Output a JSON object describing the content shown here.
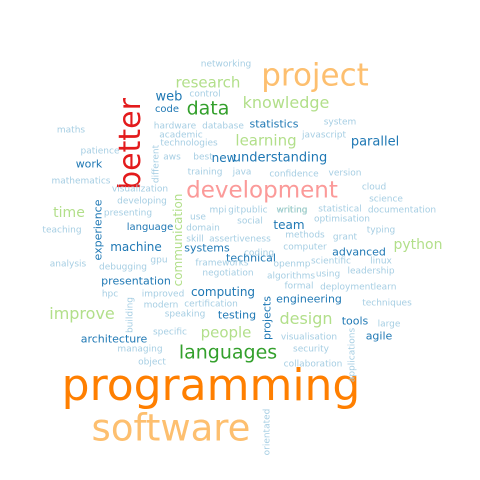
{
  "colors": {
    "lightblue": "#a6cee3",
    "blue": "#1f78b4",
    "lightgreen": "#b2df8a",
    "green": "#33a02c",
    "pink": "#fb9a99",
    "red": "#e31a1c",
    "lightorange": "#fdbf6f",
    "orange": "#ff7f00"
  },
  "words": [
    {
      "text": "programming",
      "color": "orange"
    },
    {
      "text": "software",
      "color": "lightorange"
    },
    {
      "text": "project",
      "color": "lightorange"
    },
    {
      "text": "better",
      "color": "red"
    },
    {
      "text": "development",
      "color": "pink"
    },
    {
      "text": "languages",
      "color": "green"
    },
    {
      "text": "data",
      "color": "green"
    },
    {
      "text": "writing",
      "color": "green"
    },
    {
      "text": "research",
      "color": "lightgreen"
    },
    {
      "text": "knowledge",
      "color": "lightgreen"
    },
    {
      "text": "learning",
      "color": "lightgreen"
    },
    {
      "text": "design",
      "color": "lightgreen"
    },
    {
      "text": "improve",
      "color": "lightgreen"
    },
    {
      "text": "python",
      "color": "lightgreen"
    },
    {
      "text": "people",
      "color": "lightgreen"
    },
    {
      "text": "time",
      "color": "lightgreen"
    },
    {
      "text": "communication",
      "color": "lightgreen"
    },
    {
      "text": "parallel",
      "color": "blue"
    },
    {
      "text": "understanding",
      "color": "blue"
    },
    {
      "text": "new",
      "color": "blue"
    },
    {
      "text": "web",
      "color": "blue"
    },
    {
      "text": "statistics",
      "color": "blue"
    },
    {
      "text": "machine",
      "color": "blue"
    },
    {
      "text": "computing",
      "color": "blue"
    },
    {
      "text": "team",
      "color": "blue"
    },
    {
      "text": "systems",
      "color": "blue"
    },
    {
      "text": "technical",
      "color": "blue"
    },
    {
      "text": "testing",
      "color": "blue"
    },
    {
      "text": "engineering",
      "color": "blue"
    },
    {
      "text": "tools",
      "color": "blue"
    },
    {
      "text": "agile",
      "color": "blue"
    },
    {
      "text": "advanced",
      "color": "blue"
    },
    {
      "text": "work",
      "color": "blue"
    },
    {
      "text": "language",
      "color": "blue"
    },
    {
      "text": "presentation",
      "color": "blue"
    },
    {
      "text": "architecture",
      "color": "blue"
    },
    {
      "text": "experience",
      "color": "blue"
    },
    {
      "text": "projects",
      "color": "blue"
    },
    {
      "text": "code",
      "color": "blue"
    },
    {
      "text": "networking",
      "color": "lightblue"
    },
    {
      "text": "control",
      "color": "lightblue"
    },
    {
      "text": "system",
      "color": "lightblue"
    },
    {
      "text": "maths",
      "color": "lightblue"
    },
    {
      "text": "hardware",
      "color": "lightblue"
    },
    {
      "text": "academic",
      "color": "lightblue"
    },
    {
      "text": "database",
      "color": "lightblue"
    },
    {
      "text": "technologies",
      "color": "lightblue"
    },
    {
      "text": "javascript",
      "color": "lightblue"
    },
    {
      "text": "patience",
      "color": "lightblue"
    },
    {
      "text": "aws",
      "color": "lightblue"
    },
    {
      "text": "best",
      "color": "lightblue"
    },
    {
      "text": "different",
      "color": "lightblue"
    },
    {
      "text": "mathematics",
      "color": "lightblue"
    },
    {
      "text": "training",
      "color": "lightblue"
    },
    {
      "text": "java",
      "color": "lightblue"
    },
    {
      "text": "confidence",
      "color": "lightblue"
    },
    {
      "text": "version",
      "color": "lightblue"
    },
    {
      "text": "cloud",
      "color": "lightblue"
    },
    {
      "text": "visualization",
      "color": "lightblue"
    },
    {
      "text": "developing",
      "color": "lightblue"
    },
    {
      "text": "science",
      "color": "lightblue"
    },
    {
      "text": "mpi",
      "color": "lightblue"
    },
    {
      "text": "git",
      "color": "lightblue"
    },
    {
      "text": "public",
      "color": "lightblue"
    },
    {
      "text": "writing",
      "color": "lightblue"
    },
    {
      "text": "statistical",
      "color": "lightblue"
    },
    {
      "text": "documentation",
      "color": "lightblue"
    },
    {
      "text": "presenting",
      "color": "lightblue"
    },
    {
      "text": "use",
      "color": "lightblue"
    },
    {
      "text": "social",
      "color": "lightblue"
    },
    {
      "text": "optimisation",
      "color": "lightblue"
    },
    {
      "text": "teaching",
      "color": "lightblue"
    },
    {
      "text": "domain",
      "color": "lightblue"
    },
    {
      "text": "methods",
      "color": "lightblue"
    },
    {
      "text": "grant",
      "color": "lightblue"
    },
    {
      "text": "typing",
      "color": "lightblue"
    },
    {
      "text": "skill",
      "color": "lightblue"
    },
    {
      "text": "assertiveness",
      "color": "lightblue"
    },
    {
      "text": "computer",
      "color": "lightblue"
    },
    {
      "text": "gpu",
      "color": "lightblue"
    },
    {
      "text": "coding",
      "color": "lightblue"
    },
    {
      "text": "scientific",
      "color": "lightblue"
    },
    {
      "text": "linux",
      "color": "lightblue"
    },
    {
      "text": "analysis",
      "color": "lightblue"
    },
    {
      "text": "debugging",
      "color": "lightblue"
    },
    {
      "text": "frameworks",
      "color": "lightblue"
    },
    {
      "text": "openmp",
      "color": "lightblue"
    },
    {
      "text": "leadership",
      "color": "lightblue"
    },
    {
      "text": "negotiation",
      "color": "lightblue"
    },
    {
      "text": "algorithms",
      "color": "lightblue"
    },
    {
      "text": "using",
      "color": "lightblue"
    },
    {
      "text": "formal",
      "color": "lightblue"
    },
    {
      "text": "deployment",
      "color": "lightblue"
    },
    {
      "text": "learn",
      "color": "lightblue"
    },
    {
      "text": "hpc",
      "color": "lightblue"
    },
    {
      "text": "improved",
      "color": "lightblue"
    },
    {
      "text": "techniques",
      "color": "lightblue"
    },
    {
      "text": "modern",
      "color": "lightblue"
    },
    {
      "text": "certification",
      "color": "lightblue"
    },
    {
      "text": "building",
      "color": "lightblue"
    },
    {
      "text": "speaking",
      "color": "lightblue"
    },
    {
      "text": "large",
      "color": "lightblue"
    },
    {
      "text": "specific",
      "color": "lightblue"
    },
    {
      "text": "visualisation",
      "color": "lightblue"
    },
    {
      "text": "managing",
      "color": "lightblue"
    },
    {
      "text": "security",
      "color": "lightblue"
    },
    {
      "text": "applications",
      "color": "lightblue"
    },
    {
      "text": "object",
      "color": "lightblue"
    },
    {
      "text": "collaboration",
      "color": "lightblue"
    },
    {
      "text": "orientated",
      "color": "lightblue"
    }
  ]
}
